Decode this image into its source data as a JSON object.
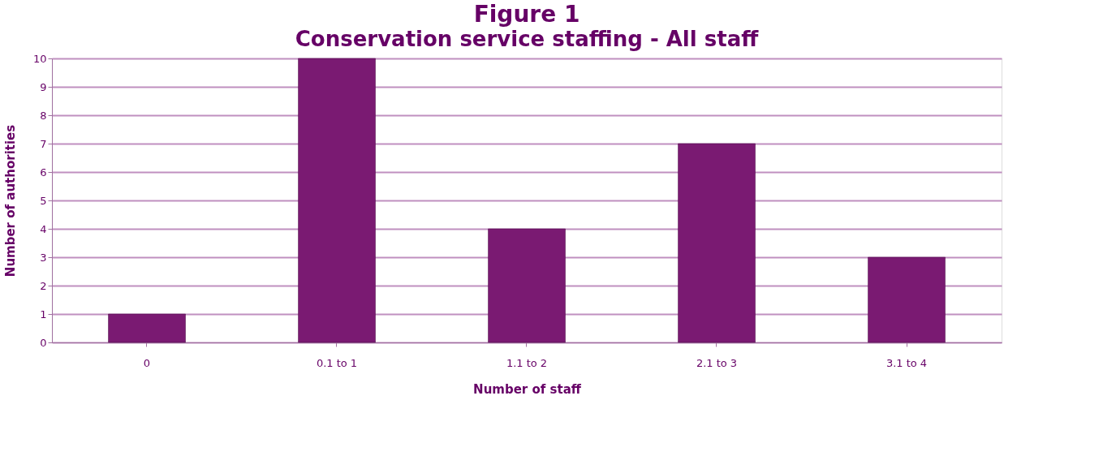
{
  "chart_data": {
    "type": "bar",
    "title": "Figure 1",
    "subtitle": "Conservation service staffing - All staff",
    "xlabel": "Number of staff",
    "ylabel": "Number of authorities",
    "categories": [
      "0",
      "0.1 to 1",
      "1.1 to 2",
      "2.1 to 3",
      "3.1 to 4"
    ],
    "values": [
      1,
      10,
      4,
      7,
      3
    ],
    "color": "#7a1a72",
    "ylim": [
      0,
      10
    ],
    "yticks": [
      0,
      1,
      2,
      3,
      4,
      5,
      6,
      7,
      8,
      9,
      10
    ],
    "grid": "y"
  }
}
